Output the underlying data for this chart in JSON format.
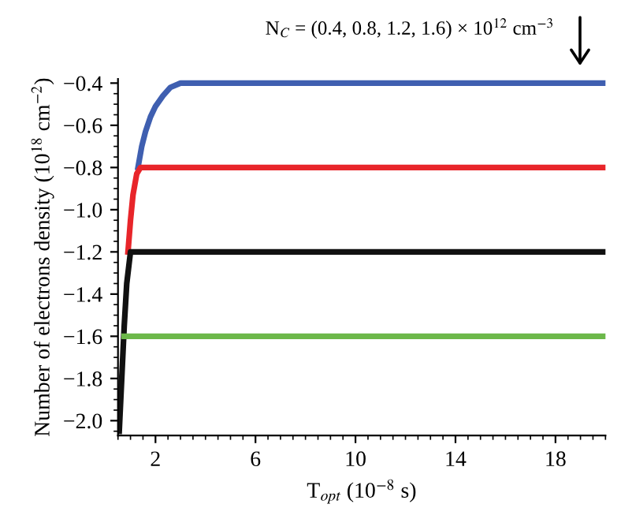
{
  "chart_data": {
    "type": "line",
    "xlabel": "T$_{opt}$ (10$^{−8}$ s)",
    "ylabel": "Number of electrons density (10$^{18}$ cm$^{−2}$)",
    "annotations": [
      "N$_{C}$ = (0.4, 0.8, 1.2, 1.6) × 10$^{12}$ cm$^{−3}$"
    ],
    "xlim": [
      0.5,
      20
    ],
    "ylim": [
      -2.07,
      -0.38
    ],
    "xticks": [
      2,
      6,
      10,
      14,
      18
    ],
    "yticks": [
      {
        "value": -2.0,
        "label": "−2.0"
      },
      {
        "value": -1.8,
        "label": "−1.8"
      },
      {
        "value": -1.6,
        "label": "−1.6"
      },
      {
        "value": -1.4,
        "label": "−1.4"
      },
      {
        "value": -1.2,
        "label": "−1.2"
      },
      {
        "value": -1.0,
        "label": "−1.0"
      },
      {
        "value": -0.8,
        "label": "−0.8"
      },
      {
        "value": -0.6,
        "label": "−0.6"
      },
      {
        "value": -0.4,
        "label": "−0.4"
      }
    ],
    "grid": false,
    "legend": false,
    "marker": "none",
    "line_style": "solid",
    "series": [
      {
        "color": "#3f5fb0",
        "x": [
          1.3,
          1.45,
          1.6,
          1.8,
          2.0,
          2.3,
          2.6,
          3.0,
          20
        ],
        "values": [
          -0.8,
          -0.7,
          -0.63,
          -0.56,
          -0.51,
          -0.46,
          -0.42,
          -0.4,
          -0.4
        ]
      },
      {
        "color": "#e8252a",
        "x": [
          0.9,
          1.0,
          1.1,
          1.25,
          1.4,
          20
        ],
        "values": [
          -1.2,
          -1.05,
          -0.93,
          -0.83,
          -0.8,
          -0.8
        ]
      },
      {
        "color": "#111111",
        "x": [
          0.55,
          0.65,
          0.75,
          0.85,
          1.0,
          20
        ],
        "values": [
          -2.05,
          -1.8,
          -1.55,
          -1.35,
          -1.2,
          -1.2
        ]
      },
      {
        "color": "#6cb84a",
        "x": [
          0.75,
          20
        ],
        "values": [
          -1.6,
          -1.6
        ]
      }
    ]
  }
}
